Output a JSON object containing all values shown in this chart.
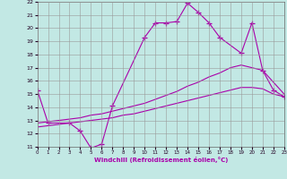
{
  "xlabel": "Windchill (Refroidissement éolien,°C)",
  "xlim": [
    0,
    23
  ],
  "ylim": [
    11,
    22
  ],
  "xticks": [
    0,
    1,
    2,
    3,
    4,
    5,
    6,
    7,
    8,
    9,
    10,
    11,
    12,
    13,
    14,
    15,
    16,
    17,
    18,
    19,
    20,
    21,
    22,
    23
  ],
  "yticks": [
    11,
    12,
    13,
    14,
    15,
    16,
    17,
    18,
    19,
    20,
    21,
    22
  ],
  "bg_color": "#c2e8e4",
  "grid_color": "#999999",
  "line_color": "#aa00aa",
  "lines": [
    {
      "x": [
        0,
        1,
        3,
        4,
        5,
        6,
        7,
        10,
        11,
        12,
        13,
        14,
        15,
        16,
        17,
        19,
        20,
        21,
        22,
        23
      ],
      "y": [
        15.3,
        12.8,
        12.8,
        12.2,
        10.9,
        11.2,
        14.1,
        19.3,
        20.4,
        20.4,
        20.5,
        21.9,
        21.2,
        20.4,
        19.3,
        18.1,
        20.4,
        16.8,
        15.3,
        14.8
      ]
    },
    {
      "x": [
        0,
        1,
        2,
        3,
        4,
        5,
        6,
        7,
        8,
        9,
        10,
        11,
        12,
        13,
        14,
        15,
        16,
        17,
        18,
        19,
        20,
        21,
        22,
        23
      ],
      "y": [
        12.8,
        12.9,
        13.0,
        13.1,
        13.2,
        13.4,
        13.5,
        13.7,
        13.9,
        14.1,
        14.3,
        14.6,
        14.9,
        15.2,
        15.6,
        15.9,
        16.3,
        16.6,
        17.0,
        17.2,
        17.0,
        16.8,
        15.9,
        15.0
      ]
    },
    {
      "x": [
        0,
        1,
        2,
        3,
        4,
        5,
        6,
        7,
        8,
        9,
        10,
        11,
        12,
        13,
        14,
        15,
        16,
        17,
        18,
        19,
        20,
        21,
        22,
        23
      ],
      "y": [
        12.5,
        12.6,
        12.7,
        12.8,
        12.9,
        13.0,
        13.1,
        13.2,
        13.4,
        13.5,
        13.7,
        13.9,
        14.1,
        14.3,
        14.5,
        14.7,
        14.9,
        15.1,
        15.3,
        15.5,
        15.5,
        15.4,
        15.0,
        14.8
      ]
    }
  ]
}
